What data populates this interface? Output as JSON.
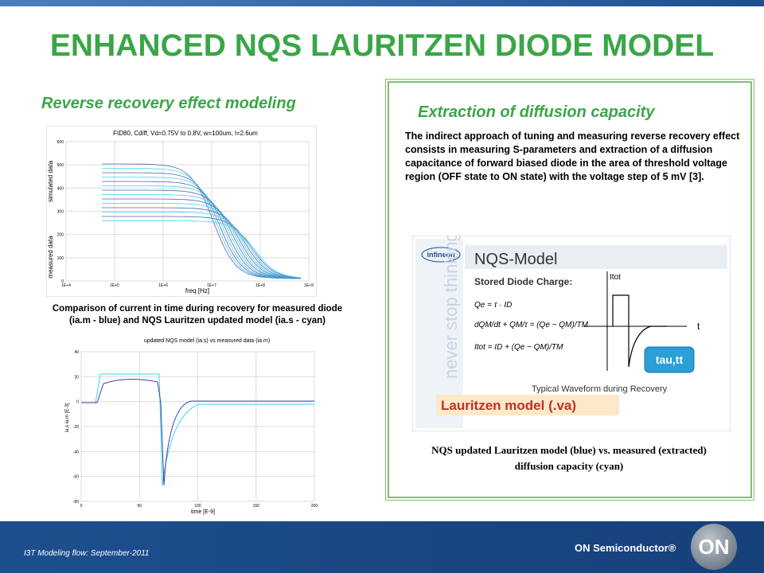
{
  "header": {
    "title": "ENHANCED NQS LAURITZEN DIODE MODEL"
  },
  "left": {
    "heading": "Reverse recovery effect modeling",
    "plot1": {
      "title": "FID80, Cdiff, Vd=0.75V to 0.8V, w=100um, l=2.6um",
      "ylabel_top": "simulated data",
      "ylabel_bottom": "measured data",
      "xlabel": "freq [Hz]",
      "yticks": [
        "600",
        "500",
        "400",
        "300",
        "200",
        "100",
        "0"
      ],
      "xticks": [
        "1E+4",
        "1E+5",
        "1E+6",
        "1E+7",
        "1E+8",
        "1E+9"
      ]
    },
    "caption": "Comparison of current in time during recovery for measured diode (ia.m - blue) and NQS Lauritzen updated model (ia.s - cyan)",
    "plot2": {
      "title": "updated NQS model (ia.s) vs measured data (ia.m)",
      "ylabel": "ia.s ia.m [E-3]",
      "xlabel": "time [E-9]",
      "yticks": [
        "40",
        "20",
        "0",
        "-20",
        "-40",
        "-60",
        "-80"
      ],
      "xticks": [
        "0",
        "50",
        "100",
        "150",
        "200"
      ]
    }
  },
  "right": {
    "heading": "Extraction of diffusion capacity",
    "paragraph": "The indirect  approach of tuning and measuring reverse recovery effect consists in measuring S-parameters and extraction of a diffusion capacitance of forward biased diode in the area of threshold voltage region (OFF state to ON state) with the voltage step of 5 mV [3].",
    "figure": {
      "logo": "infineon",
      "title": "NQS-Model",
      "subtitle": "Stored Diode Charge:",
      "side": "never stop thinking",
      "eq1": "Qe = τ · ID",
      "eq2": "dQM/dt + QM/τ = (Qe − QM)/TM",
      "eq3": "Itot = ID + (Qe − QM)/TM",
      "axis_y": "Itot",
      "axis_x": "t",
      "waveform": "Typical Waveform during Recovery",
      "banner": "Lauritzen model (.va)",
      "callout": "tau,tt"
    },
    "caption": "NQS updated Lauritzen model (blue) vs. measured (extracted) diffusion capacity (cyan)"
  },
  "footer": {
    "left": "I3T Modeling flow: September-2011",
    "brand": "ON Semiconductor®",
    "logo": "ON"
  }
}
